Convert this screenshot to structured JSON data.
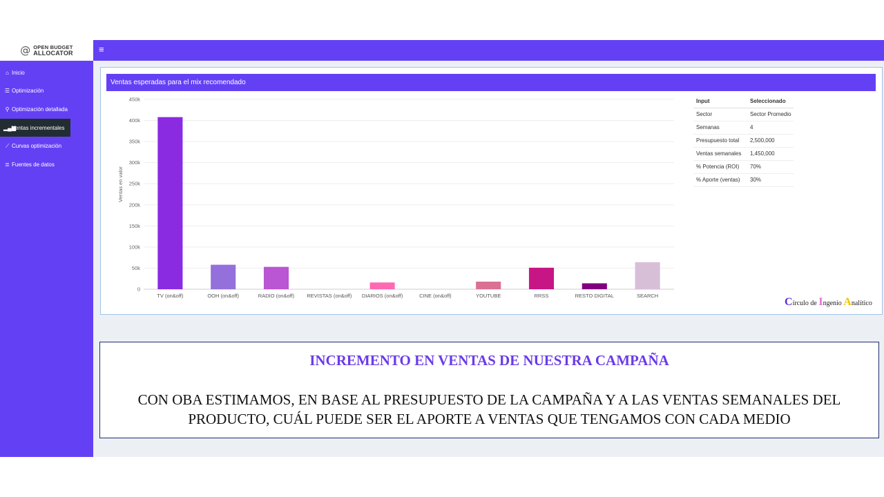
{
  "app": {
    "logo_at": "@",
    "logo_line1": "OPEN BUDGET",
    "logo_line2": "ALLOCATOR",
    "menu_icon": "hamburger-icon"
  },
  "sidebar": {
    "items": [
      {
        "label": "Inicio",
        "icon": "home-icon",
        "active": false
      },
      {
        "label": "Optimización",
        "icon": "sliders-icon",
        "active": false
      },
      {
        "label": "Optimización detallada",
        "icon": "search-icon",
        "active": false
      },
      {
        "label": "Ventas incrementales",
        "icon": "signal-bars-icon",
        "active": true
      },
      {
        "label": "Curvas optimización",
        "icon": "line-chart-icon",
        "active": false
      },
      {
        "label": "Fuentes de datos",
        "icon": "database-icon",
        "active": false
      }
    ]
  },
  "panel": {
    "title": "Ventas esperadas para el mix recomendado"
  },
  "chart_data": {
    "type": "bar",
    "title": "",
    "xlabel": "",
    "ylabel": "Ventas en valor",
    "ylim": [
      0,
      450000
    ],
    "yticks": [
      0,
      50000,
      100000,
      150000,
      200000,
      250000,
      300000,
      350000,
      400000,
      450000
    ],
    "ytick_labels": [
      "0",
      "50k",
      "100k",
      "150k",
      "200k",
      "250k",
      "300k",
      "350k",
      "400k",
      "450k"
    ],
    "grid": true,
    "categories": [
      "TV (on&off)",
      "OOH (on&off)",
      "RADIO (on&off)",
      "REVISTAS (on&off)",
      "DIARIOS (on&off)",
      "CINE (on&off)",
      "YOUTUBE",
      "RRSS",
      "RESTO DIGITAL",
      "SEARCH"
    ],
    "values": [
      408000,
      58000,
      53000,
      0,
      16000,
      0,
      18000,
      51000,
      14000,
      64000
    ],
    "colors": [
      "#8a2be2",
      "#9370db",
      "#ba55d3",
      "#dda0dd",
      "#ff69b4",
      "#f0c4e6",
      "#db7093",
      "#c71585",
      "#800080",
      "#d8bfd8"
    ]
  },
  "info_table": {
    "headers": [
      "Input",
      "Seleccionado"
    ],
    "rows": [
      [
        "Sector",
        "Sector Promedio"
      ],
      [
        "Semanas",
        "4"
      ],
      [
        "Presupuesto total",
        "2,500,000"
      ],
      [
        "Ventas semanales",
        "1,450,000"
      ],
      [
        "% Potencia (ROI)",
        "70%"
      ],
      [
        "% Aporte (ventas)",
        "30%"
      ]
    ]
  },
  "brand": {
    "c": "C",
    "w1": "írculo de ",
    "i": "I",
    "w2": "ngenio ",
    "a": "A",
    "w3": "nalítico"
  },
  "callout": {
    "title": "INCREMENTO EN VENTAS DE NUESTRA CAMPAÑA",
    "body": "CON OBA ESTIMAMOS, EN BASE AL PRESUPUESTO DE LA CAMPAÑA Y A LAS VENTAS SEMANALES DEL PRODUCTO, CUÁL PUEDE SER EL APORTE A VENTAS QUE TENGAMOS CON CADA MEDIO"
  }
}
